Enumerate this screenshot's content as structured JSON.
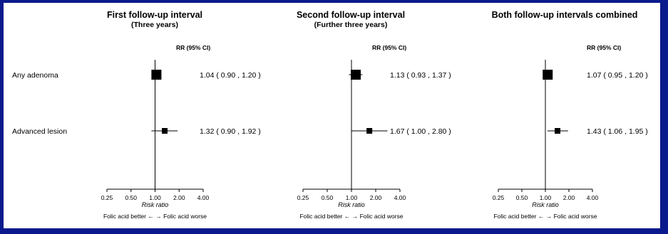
{
  "chart_data": [
    {
      "type": "forest",
      "title": "First follow-up interval",
      "subtitle": "(Three years)",
      "column_header": "RR (95% CI)",
      "xlabel": "Risk ratio",
      "x_scale": "log",
      "x_ticks": [
        "0.25",
        "0.50",
        "1.00",
        "2.00",
        "4.00"
      ],
      "direction_note": "Folic acid better ←  → Folic acid worse",
      "rows": [
        {
          "label": "Any adenoma",
          "rr": 1.04,
          "lower": 0.9,
          "upper": 1.2,
          "text": "1.04   ( 0.90 , 1.20 )",
          "weight": "large"
        },
        {
          "label": "Advanced lesion",
          "rr": 1.32,
          "lower": 0.9,
          "upper": 1.92,
          "text": "1.32   ( 0.90 , 1.92 )",
          "weight": "small"
        }
      ]
    },
    {
      "type": "forest",
      "title": "Second follow-up interval",
      "subtitle": "(Further three years)",
      "column_header": "RR (95% CI)",
      "xlabel": "Risk ratio",
      "x_scale": "log",
      "x_ticks": [
        "0.25",
        "0.50",
        "1.00",
        "2.00",
        "4.00"
      ],
      "direction_note": "Folic acid better ←  → Folic acid worse",
      "rows": [
        {
          "label": "",
          "rr": 1.13,
          "lower": 0.93,
          "upper": 1.37,
          "text": "1.13   ( 0.93 , 1.37 )",
          "weight": "large"
        },
        {
          "label": "",
          "rr": 1.67,
          "lower": 1.0,
          "upper": 2.8,
          "text": "1.67   ( 1.00 , 2.80 )",
          "weight": "small"
        }
      ]
    },
    {
      "type": "forest",
      "title": "Both follow-up intervals combined",
      "subtitle": "",
      "column_header": "RR (95% CI)",
      "xlabel": "Risk ratio",
      "x_scale": "log",
      "x_ticks": [
        "0.25",
        "0.50",
        "1.00",
        "2.00",
        "4.00"
      ],
      "direction_note": "Folic acid better ←  → Folic acid worse",
      "rows": [
        {
          "label": "",
          "rr": 1.07,
          "lower": 0.95,
          "upper": 1.2,
          "text": "1.07   ( 0.95 , 1.20 )",
          "weight": "large"
        },
        {
          "label": "",
          "rr": 1.43,
          "lower": 1.06,
          "upper": 1.95,
          "text": "1.43   ( 1.06 , 1.95 )",
          "weight": "small"
        }
      ]
    }
  ],
  "colors": {
    "frame_border": "#0a1a8c",
    "background": "#ffffff",
    "ink": "#000000"
  }
}
